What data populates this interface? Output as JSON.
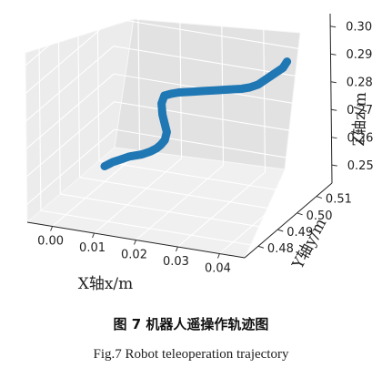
{
  "figure": {
    "caption_cn": "图 7 机器人遥操作轨迹图",
    "caption_en": "Fig.7  Robot teleoperation trajectory"
  },
  "chart_data": {
    "type": "line",
    "projection": "3d",
    "xlabel": "X轴x/m",
    "ylabel": "Y轴y/m",
    "zlabel": "Z轴z/m",
    "x_ticks": [
      "0.00",
      "0.01",
      "0.02",
      "0.03",
      "0.04"
    ],
    "y_ticks": [
      "0.48",
      "0.49",
      "0.50",
      "0.51"
    ],
    "z_ticks": [
      "0.25",
      "0.26",
      "0.27",
      "0.28",
      "0.29",
      "0.30"
    ],
    "xlim": [
      -0.006,
      0.046
    ],
    "ylim": [
      0.473,
      0.518
    ],
    "zlim": [
      0.2435,
      0.3045
    ],
    "grid": true,
    "line_color": "#1f77b4",
    "series": [
      {
        "x": [
          0.0,
          0.001,
          0.002,
          0.004,
          0.006,
          0.009,
          0.011,
          0.0125,
          0.0135,
          0.0145,
          0.015,
          0.0145,
          0.014,
          0.0138,
          0.0145,
          0.016,
          0.018,
          0.021,
          0.024,
          0.027,
          0.03,
          0.033,
          0.035,
          0.037,
          0.039,
          0.041,
          0.043,
          0.044
        ],
        "y": [
          0.5,
          0.5,
          0.5,
          0.5,
          0.5,
          0.5,
          0.5,
          0.5,
          0.5,
          0.5,
          0.5,
          0.5,
          0.5,
          0.5,
          0.5,
          0.5,
          0.5,
          0.5,
          0.5,
          0.5,
          0.5,
          0.5,
          0.5,
          0.5,
          0.5,
          0.5,
          0.5,
          0.5
        ],
        "z": [
          0.249,
          0.25,
          0.251,
          0.2525,
          0.254,
          0.2555,
          0.257,
          0.2585,
          0.26,
          0.262,
          0.265,
          0.268,
          0.271,
          0.275,
          0.278,
          0.279,
          0.28,
          0.281,
          0.282,
          0.283,
          0.284,
          0.285,
          0.286,
          0.2875,
          0.29,
          0.2925,
          0.295,
          0.2975
        ]
      }
    ]
  }
}
